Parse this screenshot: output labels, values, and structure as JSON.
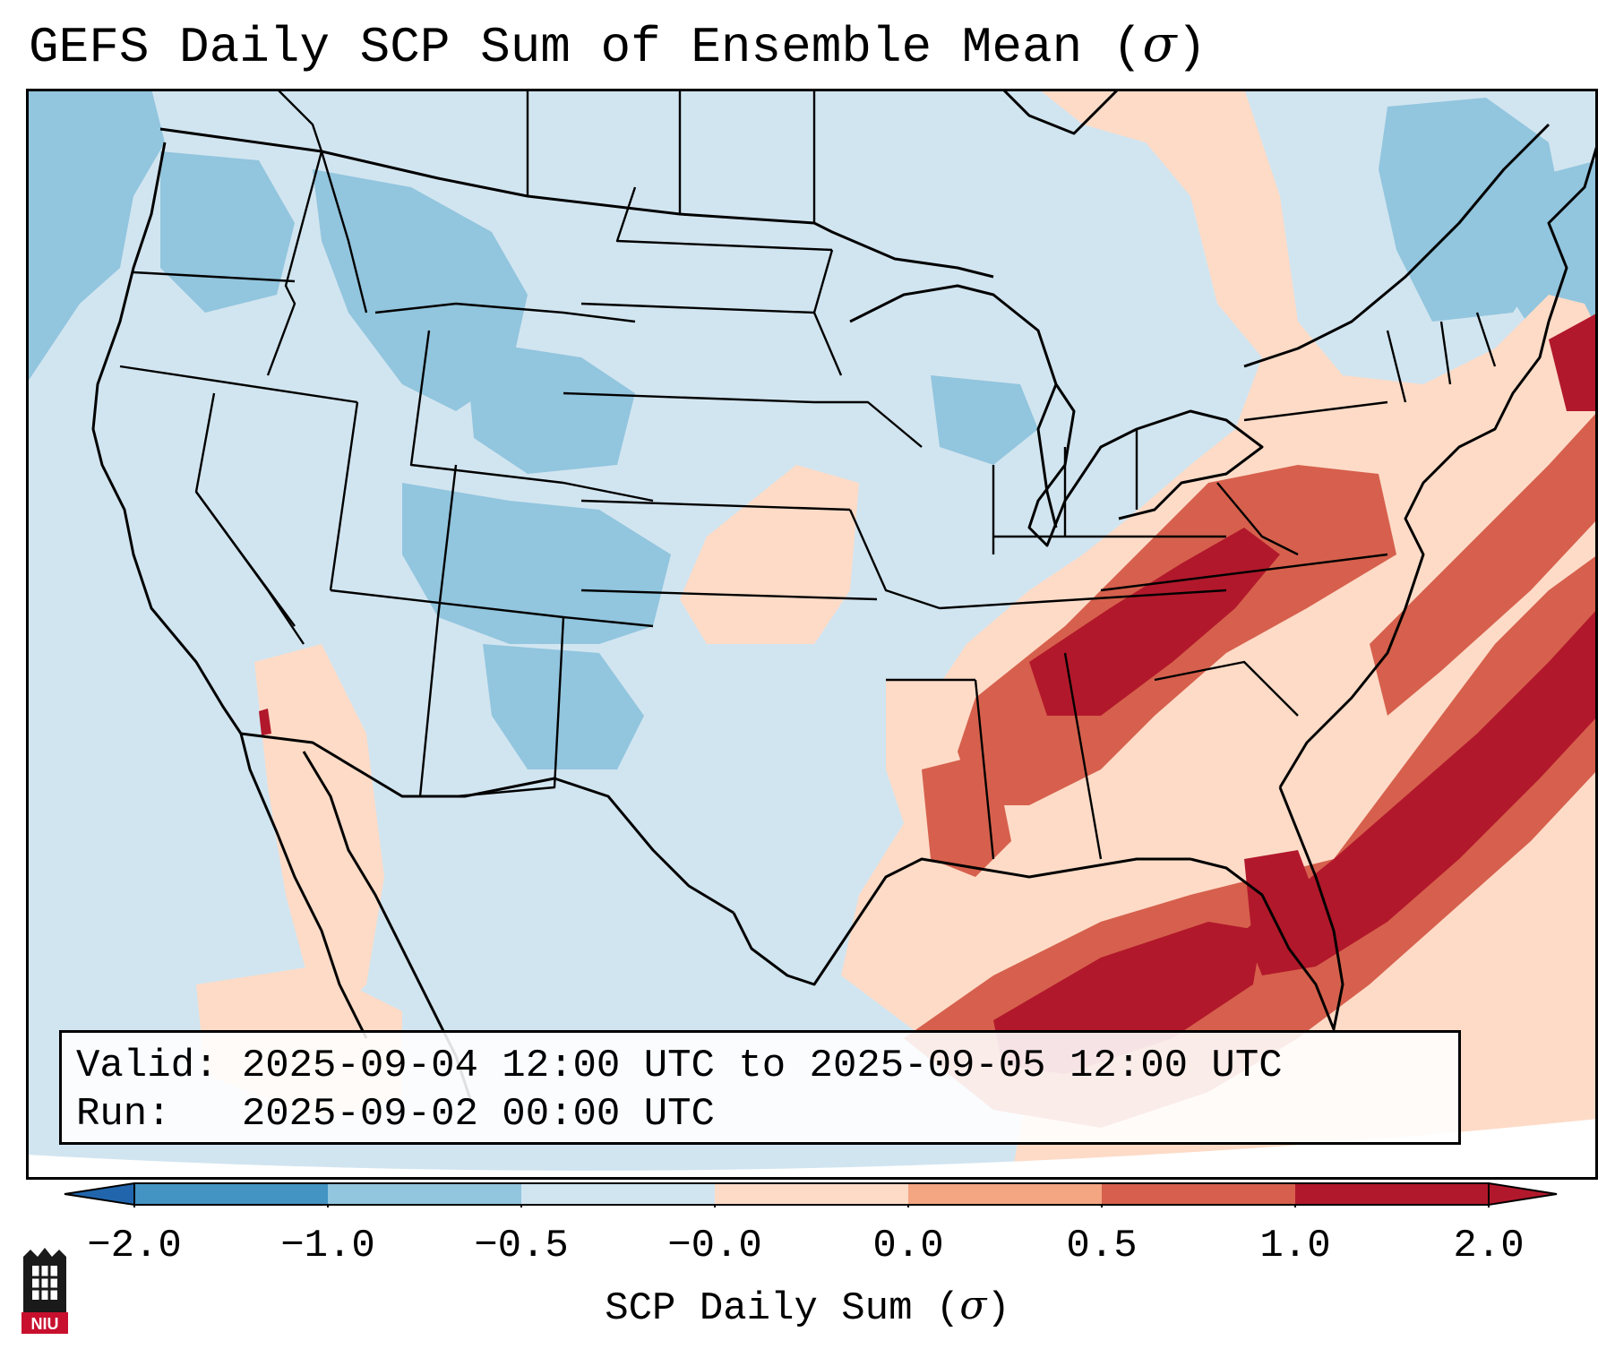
{
  "title": {
    "main": "GEFS Daily SCP Sum of Ensemble Mean (",
    "symbol": "σ",
    "close": ")"
  },
  "info": {
    "valid_label": "Valid:",
    "valid_value": "2025-09-04 12:00 UTC to 2025-09-05 12:00 UTC",
    "run_label": "Run:",
    "run_value": "2025-09-02 00:00 UTC"
  },
  "colorbar": {
    "ticks": [
      "−2.0",
      "−1.0",
      "−0.5",
      "−0.0",
      "0.0",
      "0.5",
      "1.0",
      "2.0"
    ],
    "label_main": "SCP Daily Sum (",
    "label_symbol": "σ",
    "label_close": ")",
    "colors": [
      "#4393c3",
      "#92c5de",
      "#d1e5f0",
      "#fddbc7",
      "#f4a582",
      "#d6604d",
      "#b2182b"
    ]
  },
  "map_colors": {
    "ocean_bg": "#d1e5f0",
    "light_blue": "#d1e5f0",
    "mid_blue": "#92c5de",
    "light_red": "#fddbc7",
    "mid_red": "#f4a582",
    "red": "#d6604d",
    "dark_red": "#b2182b",
    "outside": "#ffffff"
  },
  "logo": {
    "text": "NIU",
    "colors": {
      "red": "#c8102e",
      "black": "#1a1a1a"
    }
  }
}
